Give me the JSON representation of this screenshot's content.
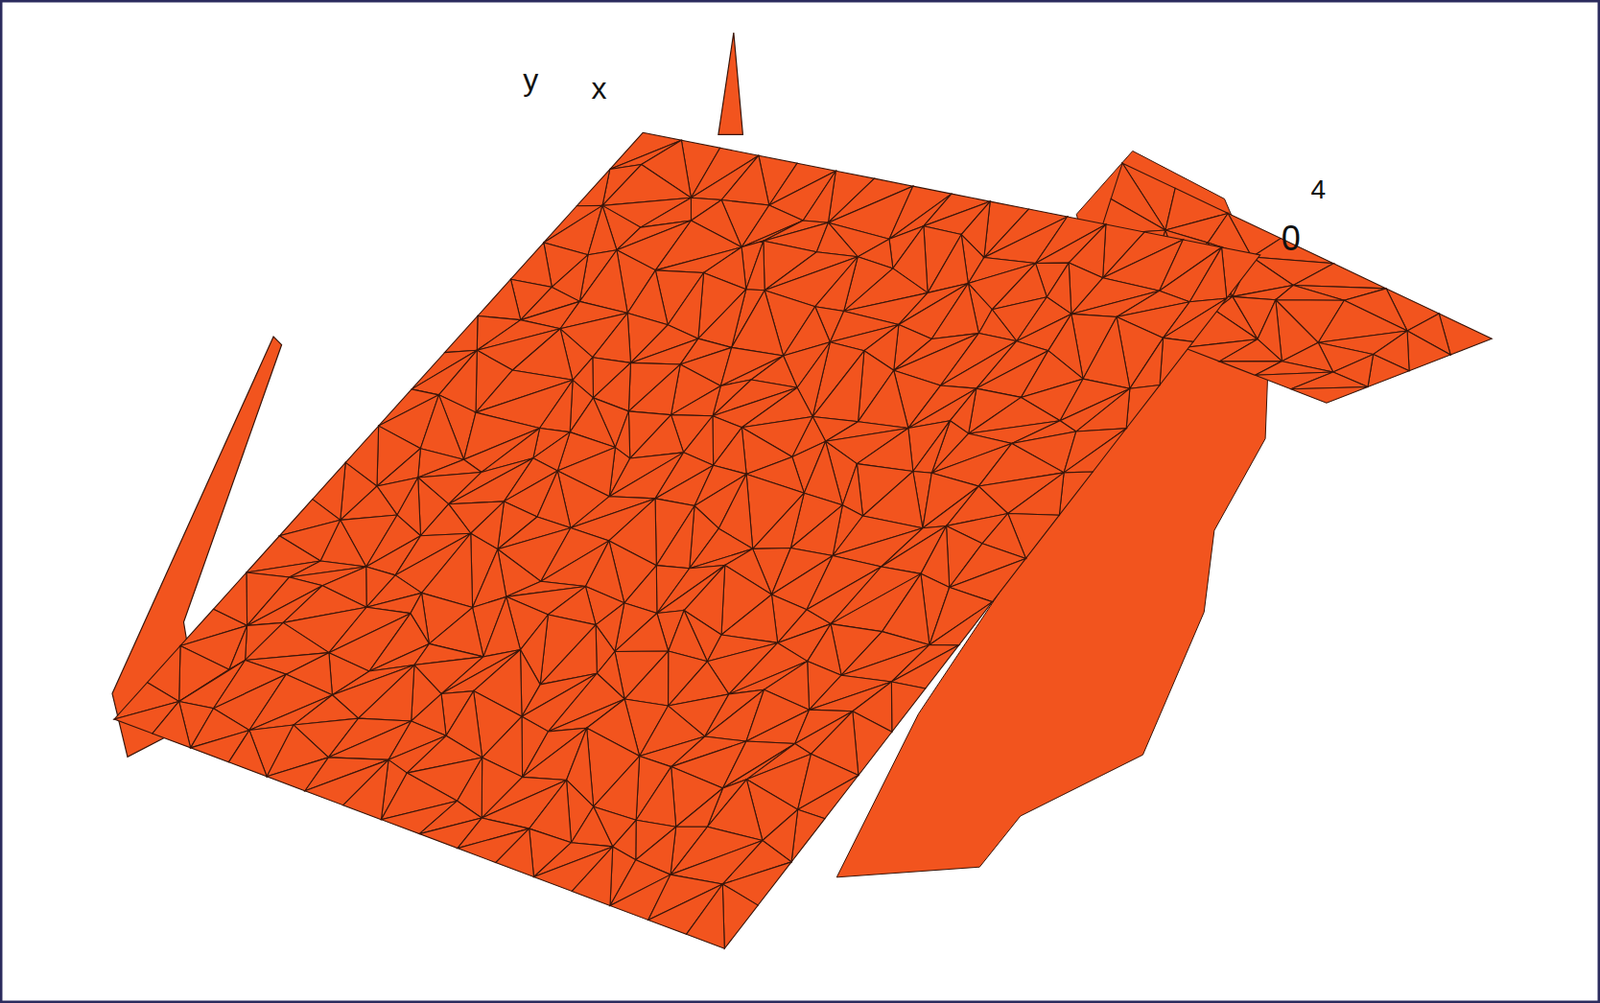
{
  "chart_data": {
    "type": "surface",
    "x_label": "x",
    "y_label": "y",
    "annotations": [
      "0",
      "4"
    ],
    "color": "#f2541e",
    "tick_labels": false,
    "grid": false
  }
}
